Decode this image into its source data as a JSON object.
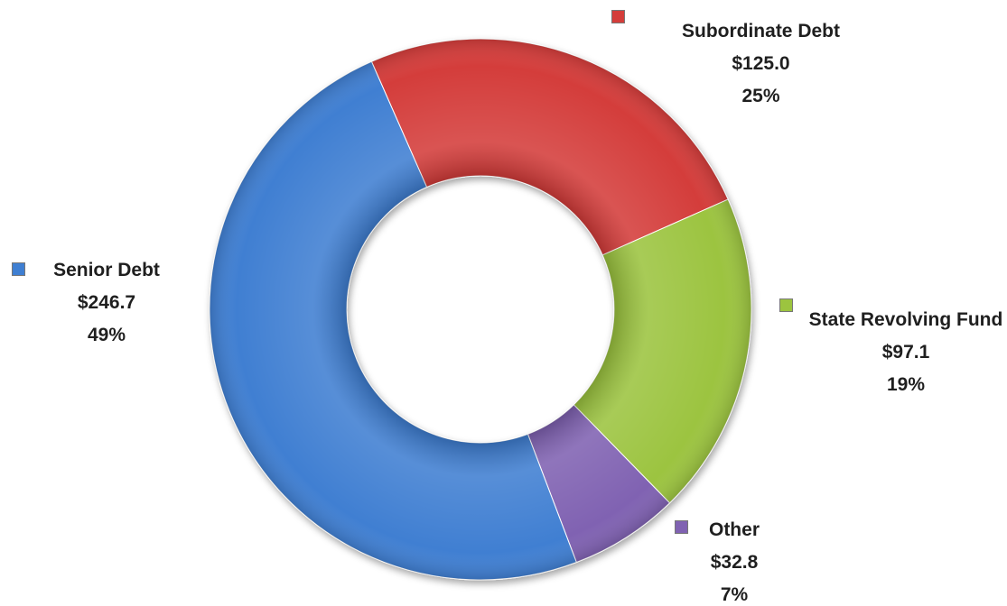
{
  "chart_data": {
    "type": "donut",
    "categories": [
      "Subordinate Debt",
      "State Revolving Fund",
      "Other",
      "Senior Debt"
    ],
    "values": [
      125.0,
      97.1,
      32.8,
      246.7
    ],
    "value_labels": [
      "$125.0",
      "$97.1",
      "$32.8",
      "$246.7"
    ],
    "percentages": [
      25,
      19,
      7,
      49
    ],
    "percentage_labels": [
      "25%",
      "19%",
      "7%",
      "49%"
    ],
    "colors": [
      "#d43d3a",
      "#9cc43f",
      "#8062b2",
      "#3f7fd2"
    ]
  }
}
